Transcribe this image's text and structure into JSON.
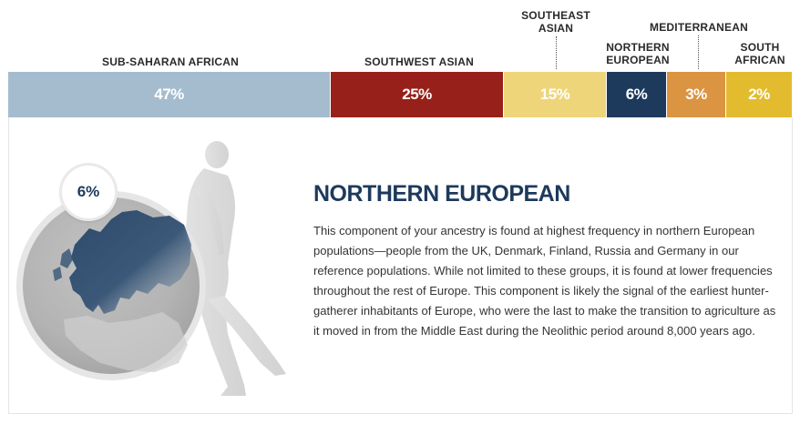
{
  "legend_labels": {
    "sub_saharan_african": "SUB-SAHARAN AFRICAN",
    "southwest_asian": "SOUTHWEST ASIAN",
    "southeast_asian_line1": "SOUTHEAST",
    "southeast_asian_line2": "ASIAN",
    "northern_european_line1": "NORTHERN",
    "northern_european_line2": "EUROPEAN",
    "mediterranean": "MEDITERRANEAN",
    "south_african_line1": "SOUTH",
    "south_african_line2": "AFRICAN"
  },
  "ancestry_bar": [
    {
      "id": "sub-saharan-african",
      "value": 47,
      "label": "47%",
      "color": "#a5bccf",
      "text_color": "#ffffff"
    },
    {
      "id": "southwest-asian",
      "value": 25,
      "label": "25%",
      "color": "#97211a",
      "text_color": "#ffffff"
    },
    {
      "id": "southeast-asian",
      "value": 15,
      "label": "15%",
      "color": "#efd57a",
      "text_color": "#ffffff"
    },
    {
      "id": "northern-european",
      "value": 6,
      "label": "6%",
      "color": "#1d3a5c",
      "text_color": "#ffffff",
      "selected": true
    },
    {
      "id": "mediterranean",
      "value": 3,
      "label": "3%",
      "color": "#db9442",
      "text_color": "#ffffff"
    },
    {
      "id": "south-african",
      "value": 2,
      "label": "2%",
      "color": "#e3bb2f",
      "text_color": "#ffffff"
    }
  ],
  "detail": {
    "badge": "6%",
    "title": "NORTHERN EUROPEAN",
    "description": "This component of your ancestry is found at highest frequency in northern European populations—people from the UK, Denmark, Finland, Russia and Germany in our reference populations. While not limited to these groups, it is found at lower frequencies throughout the rest of Europe. This component is likely the signal of the earliest hunter-gatherer inhabitants of Europe, who were the last to make the transition to agriculture as it moved in from the Middle East during the Neolithic period around 8,000 years ago."
  },
  "colors": {
    "accent": "#1d3a5c",
    "panel_border": "#e5e5e5"
  },
  "icons": {
    "illustration": "walking-figure-and-globe-icon"
  }
}
